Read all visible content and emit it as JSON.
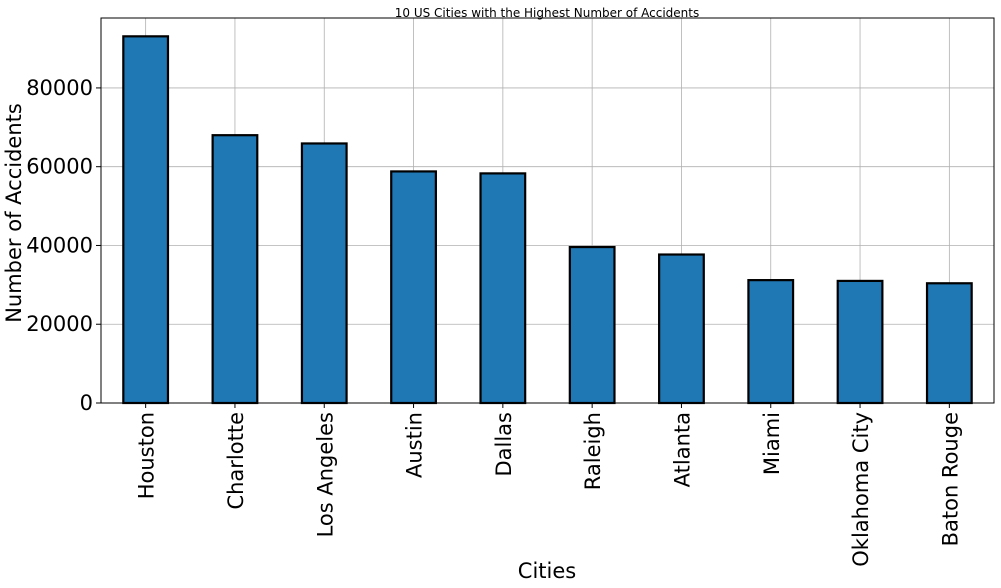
{
  "chart_data": {
    "type": "bar",
    "title": "10 US Cities with the Highest Number of Accidents",
    "xlabel": "Cities",
    "ylabel": "Number of Accidents",
    "categories": [
      "Houston",
      "Charlotte",
      "Los Angeles",
      "Austin",
      "Dallas",
      "Raleigh",
      "Atlanta",
      "Miami",
      "Oklahoma City",
      "Baton Rouge"
    ],
    "values": [
      93100,
      68000,
      65900,
      58800,
      58300,
      39600,
      37700,
      31200,
      31000,
      30400
    ],
    "ylim": [
      0,
      97755
    ],
    "yticks": [
      0,
      20000,
      40000,
      60000,
      80000
    ],
    "ytick_labels": [
      "0",
      "20000",
      "40000",
      "60000",
      "80000"
    ],
    "grid": true,
    "bar_color": "#1f77b4",
    "edge_color": "#000000"
  }
}
